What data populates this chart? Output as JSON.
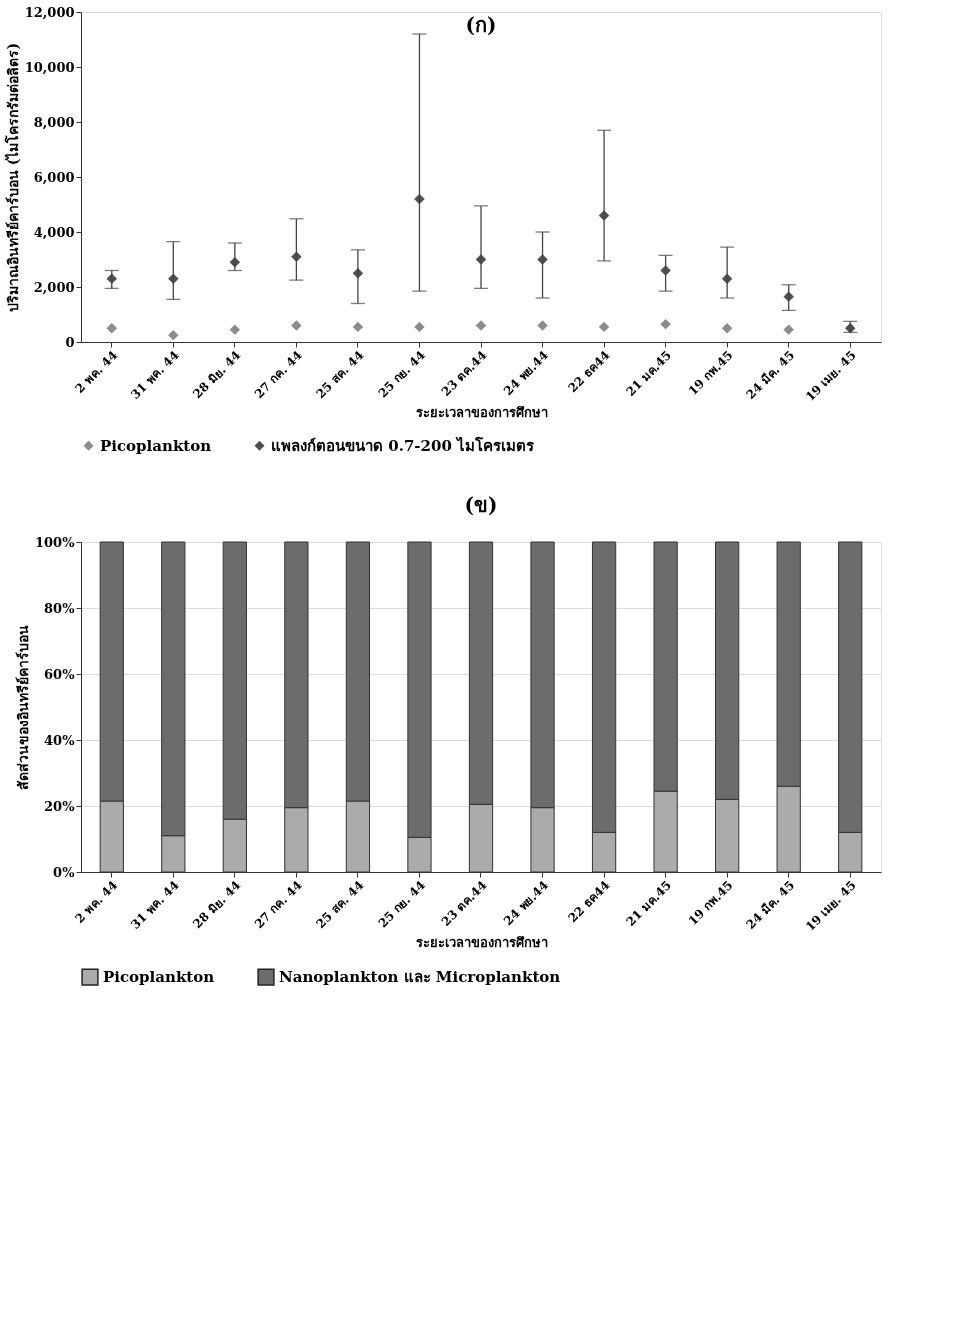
{
  "chart_data": [
    {
      "type": "scatter",
      "title": "(ก)",
      "xlabel": "ระยะเวลาของการศึกษา",
      "ylabel": "ปริมาณอินทรีย์คาร์บอน (ไมโครกรัมต่อลิตร)",
      "categories": [
        "2 พค. 44",
        "31 พค. 44",
        "28 มิย. 44",
        "27 กค. 44",
        "25 สค. 44",
        "25 กย. 44",
        "23 ตค.44",
        "24 พย.44",
        "22 ธค44",
        "21 มค.45",
        "19 กพ.45",
        "24 มีค. 45",
        "19 เมย. 45"
      ],
      "series": [
        {
          "name": "Picoplankton",
          "color": "#8c8c8c",
          "values": [
            500,
            250,
            450,
            600,
            550,
            550,
            600,
            600,
            550,
            650,
            500,
            450,
            null
          ]
        },
        {
          "name": "แพลงก์ตอนขนาด 0.7-200 ไมโครเมตร",
          "color": "#505050",
          "values": [
            2300,
            2300,
            2900,
            3100,
            2500,
            5200,
            3000,
            3000,
            4600,
            2600,
            2300,
            1650,
            500
          ],
          "errors": [
            [
              1950,
              2600
            ],
            [
              1550,
              3650
            ],
            [
              2600,
              3600
            ],
            [
              2250,
              4480
            ],
            [
              1400,
              3350
            ],
            [
              1850,
              11200
            ],
            [
              1950,
              4950
            ],
            [
              1600,
              4000
            ],
            [
              2950,
              7700
            ],
            [
              1850,
              3150
            ],
            [
              1600,
              3450
            ],
            [
              1150,
              2080
            ],
            [
              350,
              750
            ]
          ]
        }
      ],
      "ylim": [
        0,
        12000
      ],
      "yticks": [
        {
          "value": 0,
          "label": "0"
        },
        {
          "value": 2000,
          "label": "2,000"
        },
        {
          "value": 4000,
          "label": "4,000"
        },
        {
          "value": 6000,
          "label": "6,000"
        },
        {
          "value": 8000,
          "label": "8,000"
        },
        {
          "value": 10000,
          "label": "10,000"
        },
        {
          "value": 12000,
          "label": "12,000"
        }
      ],
      "marker": "diamond",
      "grid": false,
      "legend": "bottom"
    },
    {
      "type": "bar",
      "stacked": true,
      "title": "(ข)",
      "xlabel": "ระยะเวลาของการศึกษา",
      "ylabel": "สัดส่วนของอินทรีย์คาร์บอน",
      "categories": [
        "2 พค. 44",
        "31 พค. 44",
        "28 มิย. 44",
        "27 กค. 44",
        "25 สค. 44",
        "25 กย. 44",
        "23 ตค.44",
        "24 พย.44",
        "22 ธค44",
        "21 มค.45",
        "19 กพ.45",
        "24 มีค. 45",
        "19 เมย. 45"
      ],
      "series": [
        {
          "name": "Picoplankton",
          "color": "#ababab",
          "values": [
            21.5,
            11,
            16,
            19.5,
            21.5,
            10.5,
            20.5,
            19.5,
            12,
            24.5,
            22,
            26,
            12
          ]
        },
        {
          "name": "Nanoplankton และ Microplankton",
          "color": "#6c6c6c",
          "values": [
            78.5,
            89,
            84,
            80.5,
            78.5,
            89.5,
            79.5,
            80.5,
            88,
            75.5,
            78,
            74,
            88
          ]
        }
      ],
      "ylim": [
        0,
        100
      ],
      "yticks": [
        {
          "value": 0,
          "label": "0%"
        },
        {
          "value": 20,
          "label": "20%"
        },
        {
          "value": 40,
          "label": "40%"
        },
        {
          "value": 60,
          "label": "60%"
        },
        {
          "value": 80,
          "label": "80%"
        },
        {
          "value": 100,
          "label": "100%"
        }
      ],
      "grid": "y",
      "legend": "bottom"
    }
  ]
}
